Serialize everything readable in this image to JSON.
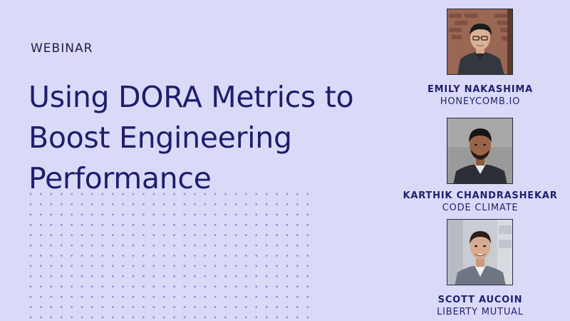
{
  "eyebrow": "WEBINAR",
  "title_lines": [
    "Using DORA Metrics to",
    "Boost Engineering",
    "Performance"
  ],
  "speakers": [
    {
      "name": "EMILY NAKASHIMA",
      "org": "HONEYCOMB.IO"
    },
    {
      "name": "KARTHIK CHANDRASHEKAR",
      "org": "CODE CLIMATE"
    },
    {
      "name": "SCOTT AUCOIN",
      "org": "LIBERTY MUTUAL"
    }
  ],
  "colors": {
    "background": "#d9daf8",
    "title": "#201d6b",
    "dots": "#8f8fd6"
  }
}
